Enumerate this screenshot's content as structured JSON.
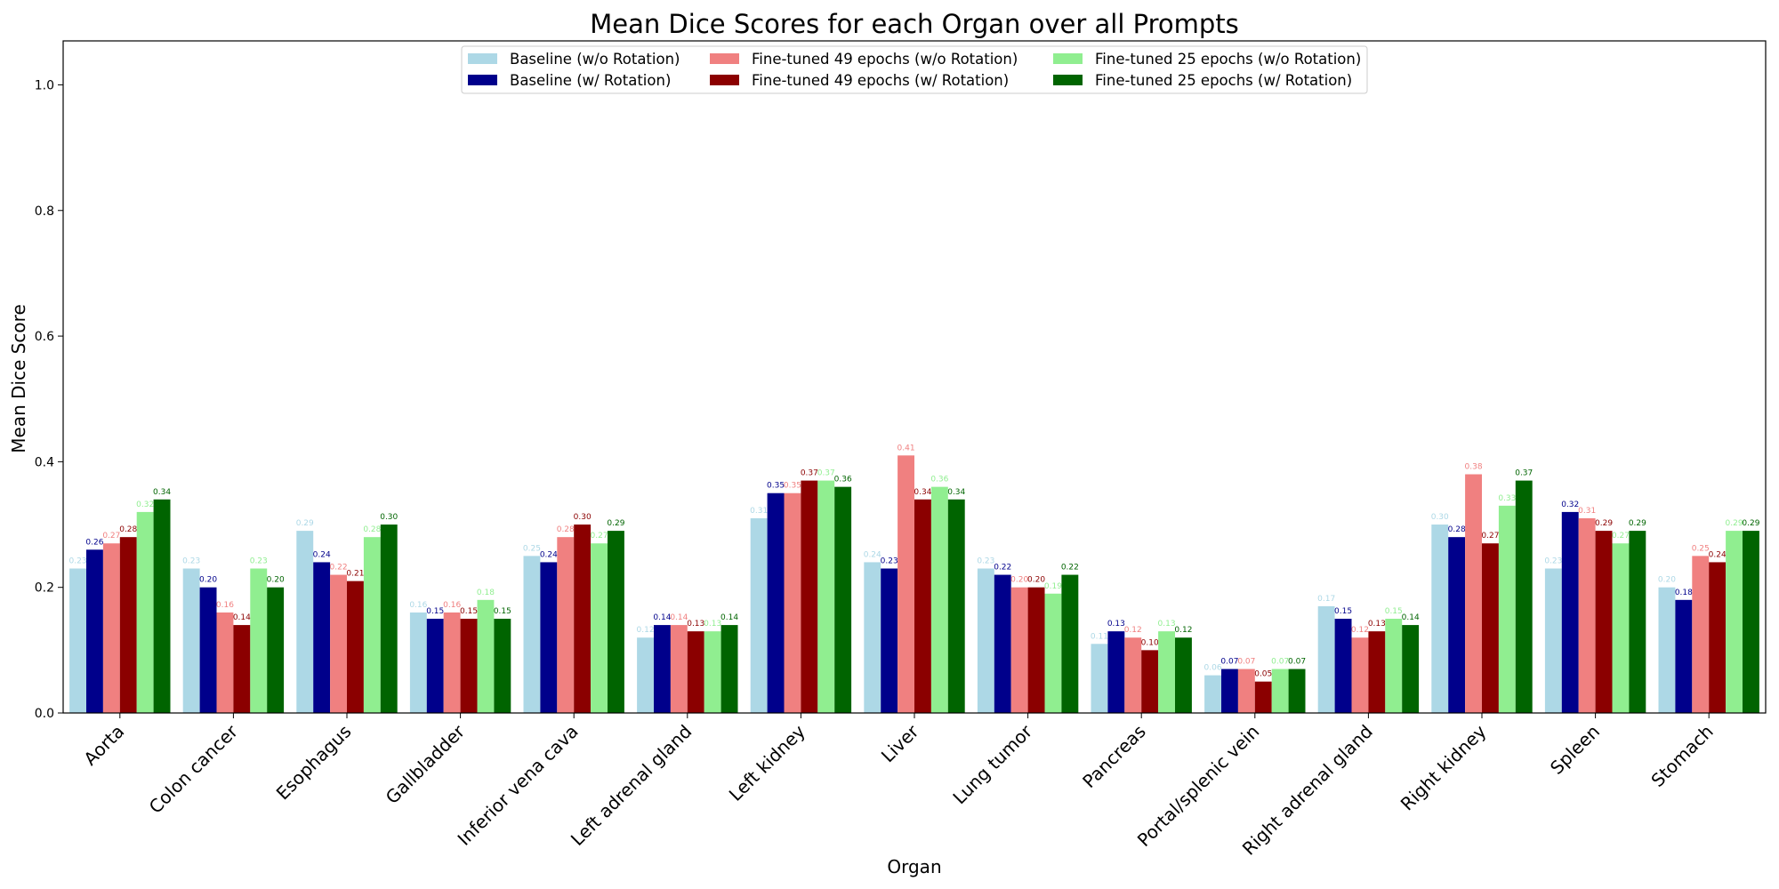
{
  "chart_data": {
    "type": "bar",
    "title": "Mean Dice Scores for each Organ over all Prompts",
    "xlabel": "Organ",
    "ylabel": "Mean Dice Score",
    "ylim": [
      0,
      1.07
    ],
    "yticks": [
      "0.0",
      "0.2",
      "0.4",
      "0.6",
      "0.8",
      "1.0"
    ],
    "grid": false,
    "legend_position": "top-center",
    "categories": [
      "Aorta",
      "Colon cancer",
      "Esophagus",
      "Gallbladder",
      "Inferior vena cava",
      "Left adrenal gland",
      "Left kidney",
      "Liver",
      "Lung tumor",
      "Pancreas",
      "Portal/splenic vein",
      "Right adrenal gland",
      "Right kidney",
      "Spleen",
      "Stomach"
    ],
    "series": [
      {
        "name": "Baseline (w/o Rotation)",
        "color": "#add8e6",
        "values": [
          0.23,
          0.23,
          0.29,
          0.16,
          0.25,
          0.12,
          0.31,
          0.24,
          0.23,
          0.11,
          0.06,
          0.17,
          0.3,
          0.23,
          0.2
        ],
        "labels": [
          "0.23",
          "0.23",
          "0.29",
          "0.16",
          "0.25",
          "0.12",
          "0.31",
          "0.24",
          "0.23",
          "0.11",
          "0.06",
          "0.17",
          "0.30",
          "0.23",
          "0.20"
        ]
      },
      {
        "name": "Baseline (w/ Rotation)",
        "color": "#00008b",
        "values": [
          0.26,
          0.2,
          0.24,
          0.15,
          0.24,
          0.14,
          0.35,
          0.23,
          0.22,
          0.13,
          0.07,
          0.15,
          0.28,
          0.32,
          0.18
        ],
        "labels": [
          "0.26",
          "0.20",
          "0.24",
          "0.15",
          "0.24",
          "0.14",
          "0.35",
          "0.23",
          "0.22",
          "0.13",
          "0.07",
          "0.15",
          "0.28",
          "0.32",
          "0.18"
        ]
      },
      {
        "name": "Fine-tuned 49 epochs (w/o Rotation)",
        "color": "#f08080",
        "values": [
          0.27,
          0.16,
          0.22,
          0.16,
          0.28,
          0.14,
          0.35,
          0.41,
          0.2,
          0.12,
          0.07,
          0.12,
          0.38,
          0.31,
          0.25
        ],
        "labels": [
          "0.27",
          "0.16",
          "0.22",
          "0.16",
          "0.28",
          "0.14",
          "0.35",
          "0.41",
          "0.20",
          "0.12",
          "0.07",
          "0.12",
          "0.38",
          "0.31",
          "0.25"
        ]
      },
      {
        "name": "Fine-tuned 49 epochs (w/ Rotation)",
        "color": "#8b0000",
        "values": [
          0.28,
          0.14,
          0.21,
          0.15,
          0.3,
          0.13,
          0.37,
          0.34,
          0.2,
          0.1,
          0.05,
          0.13,
          0.27,
          0.29,
          0.24
        ],
        "labels": [
          "0.28",
          "0.14",
          "0.21",
          "0.15",
          "0.30",
          "0.13",
          "0.37",
          "0.34",
          "0.20",
          "0.10",
          "0.05",
          "0.13",
          "0.27",
          "0.29",
          "0.24"
        ]
      },
      {
        "name": "Fine-tuned 25 epochs (w/o Rotation)",
        "color": "#90ee90",
        "values": [
          0.32,
          0.23,
          0.28,
          0.18,
          0.27,
          0.13,
          0.37,
          0.36,
          0.19,
          0.13,
          0.07,
          0.15,
          0.33,
          0.27,
          0.29
        ],
        "labels": [
          "0.32",
          "0.23",
          "0.28",
          "0.18",
          "0.27",
          "0.13",
          "0.37",
          "0.36",
          "0.19",
          "0.13",
          "0.07",
          "0.15",
          "0.33",
          "0.27",
          "0.29"
        ]
      },
      {
        "name": "Fine-tuned 25 epochs (w/ Rotation)",
        "color": "#006400",
        "values": [
          0.34,
          0.2,
          0.3,
          0.15,
          0.29,
          0.14,
          0.36,
          0.34,
          0.22,
          0.12,
          0.07,
          0.14,
          0.37,
          0.29,
          0.29
        ],
        "labels": [
          "0.34",
          "0.20",
          "0.30",
          "0.15",
          "0.29",
          "0.14",
          "0.36",
          "0.34",
          "0.22",
          "0.12",
          "0.07",
          "0.14",
          "0.37",
          "0.29",
          "0.29"
        ]
      }
    ]
  }
}
